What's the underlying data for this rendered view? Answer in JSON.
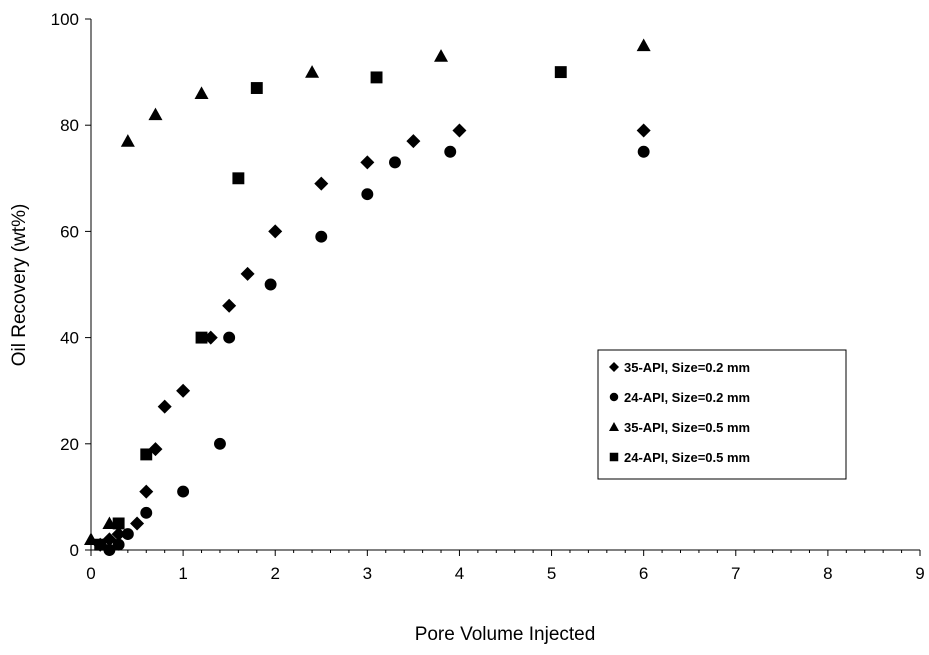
{
  "chart_data": {
    "type": "scatter",
    "xlabel": "Pore Volume Injected",
    "ylabel": "Oil Recovery (wt%)",
    "xlim": [
      0,
      9
    ],
    "ylim": [
      0,
      100
    ],
    "xticks": [
      "0",
      "1",
      "2",
      "3",
      "4",
      "5",
      "6",
      "7",
      "8",
      "9"
    ],
    "yticks": [
      "0",
      "20",
      "40",
      "60",
      "80",
      "100"
    ],
    "grid": false,
    "legend_position": "center-right",
    "series": [
      {
        "name": "35-API, Size=0.2 mm",
        "marker": "diamond",
        "color": "#000000",
        "x": [
          0.1,
          0.2,
          0.3,
          0.5,
          0.6,
          0.7,
          0.8,
          1.0,
          1.3,
          1.5,
          1.7,
          2.0,
          2.5,
          3.0,
          3.5,
          4.0,
          6.0
        ],
        "y": [
          1,
          2,
          3,
          5,
          11,
          19,
          27,
          30,
          40,
          46,
          52,
          60,
          69,
          73,
          77,
          79,
          79
        ]
      },
      {
        "name": "24-API, Size=0.2 mm",
        "marker": "circle",
        "color": "#000000",
        "x": [
          0.2,
          0.3,
          0.4,
          0.6,
          1.0,
          1.4,
          1.5,
          1.95,
          2.5,
          3.0,
          3.3,
          3.9,
          6.0
        ],
        "y": [
          0,
          1,
          3,
          7,
          11,
          20,
          40,
          50,
          59,
          67,
          73,
          75,
          75
        ]
      },
      {
        "name": "35-API, Size=0.5 mm",
        "marker": "triangle",
        "color": "#000000",
        "x": [
          0.0,
          0.2,
          0.4,
          0.7,
          1.2,
          2.4,
          3.8,
          6.0
        ],
        "y": [
          2,
          5,
          77,
          82,
          86,
          90,
          93,
          95
        ]
      },
      {
        "name": "24-API, Size=0.5 mm",
        "marker": "square",
        "color": "#000000",
        "x": [
          0.1,
          0.3,
          0.6,
          1.2,
          1.6,
          1.8,
          3.1,
          5.1
        ],
        "y": [
          1,
          5,
          18,
          40,
          70,
          87,
          89,
          90
        ]
      }
    ]
  }
}
